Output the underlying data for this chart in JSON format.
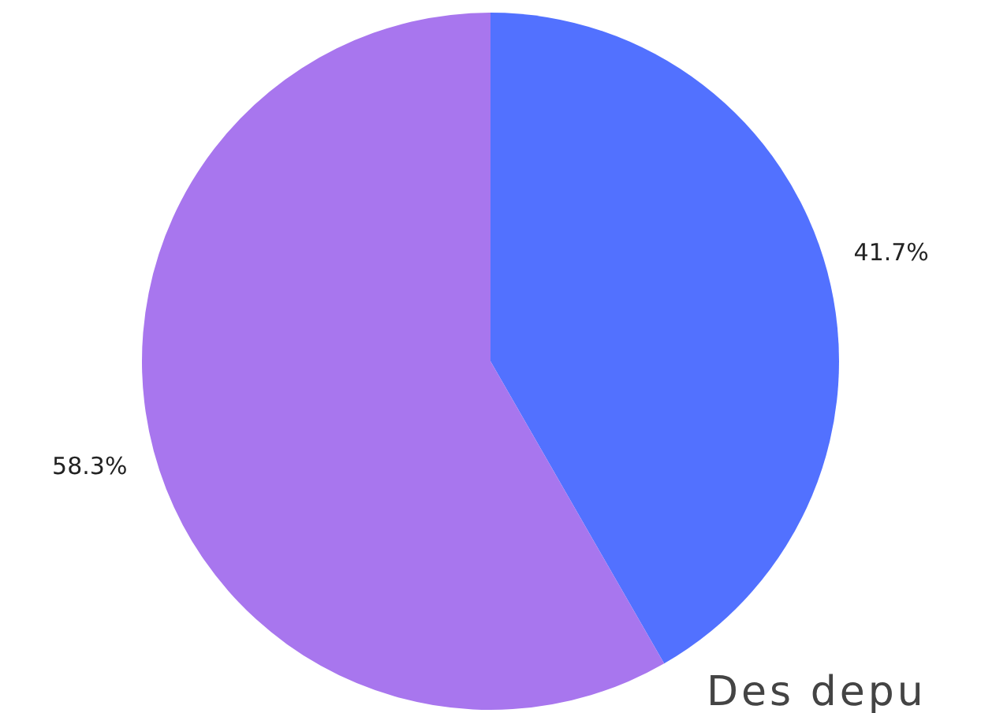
{
  "chart_data": {
    "type": "pie",
    "categories": [
      null,
      null
    ],
    "values": [
      41.7,
      58.3
    ],
    "colors": [
      "#5271ff",
      "#a876ee"
    ],
    "value_labels": [
      "41.7%",
      "58.3%"
    ],
    "legend": false,
    "annotations": [
      "Des depu"
    ]
  }
}
